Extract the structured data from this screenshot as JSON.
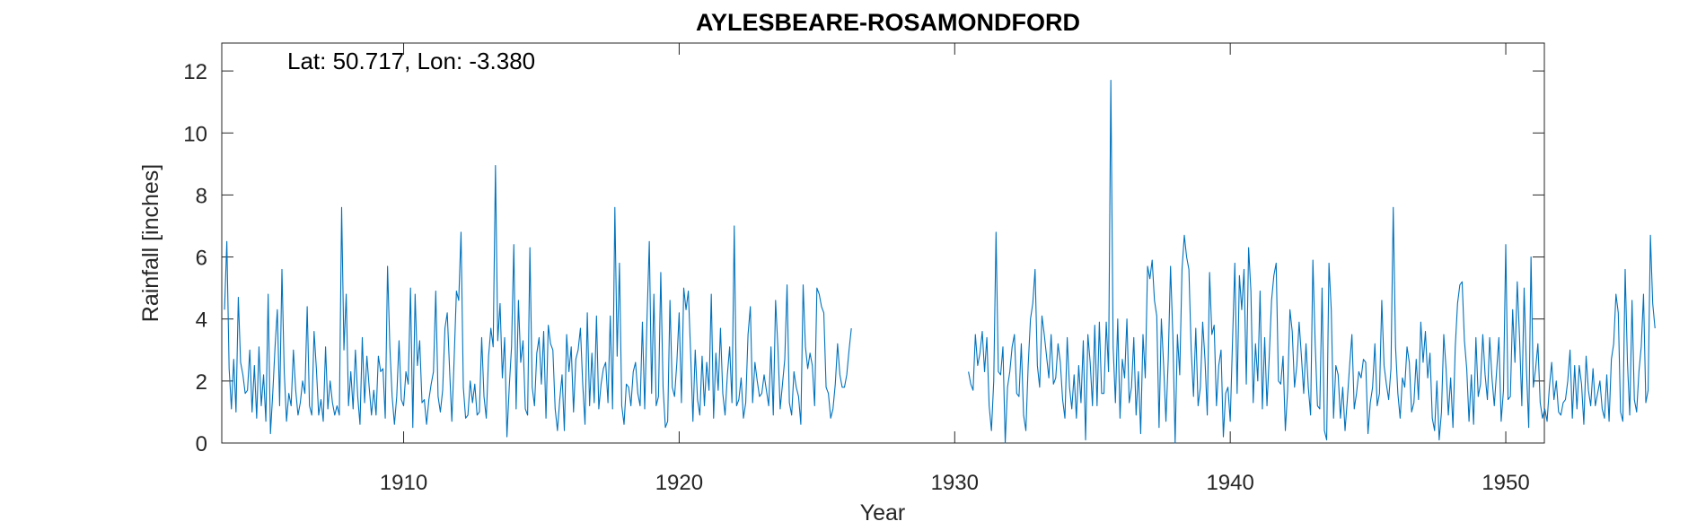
{
  "chart_data": {
    "type": "line",
    "title": "AYLESBEARE-ROSAMONDFORD",
    "xlabel": "Year",
    "ylabel": "Rainfall [inches]",
    "annotation": "Lat: 50.717, Lon: -3.380",
    "xlim": [
      1903.4,
      1951.4
    ],
    "ylim": [
      0,
      12.9
    ],
    "xticks": [
      1910,
      1920,
      1930,
      1940,
      1950
    ],
    "yticks": [
      0,
      2,
      4,
      6,
      8,
      10,
      12
    ],
    "grid": false,
    "line_color": "#0072BD",
    "series": [
      {
        "segments": [
          {
            "start": 1903.5,
            "step": 0.08333,
            "values": [
              4.3,
              6.5,
              2.4,
              1.1,
              2.7,
              1.0,
              4.7,
              2.6,
              2.2,
              1.6,
              1.7,
              3.0,
              1.0,
              2.5,
              0.8,
              3.1,
              1.2,
              2.2,
              0.7,
              4.8,
              0.3,
              1.6,
              3.1,
              4.3,
              1.2,
              5.6,
              2.3,
              0.7,
              1.6,
              1.2,
              3.0,
              1.7,
              0.9,
              1.3,
              2.0,
              1.6,
              4.4,
              1.2,
              0.9,
              3.6,
              2.4,
              0.9,
              1.4,
              0.7,
              3.1,
              1.1,
              2.0,
              1.3,
              0.9,
              1.2,
              0.9,
              7.6,
              3.0,
              4.8,
              1.2,
              2.3,
              1.1,
              3.0,
              1.5,
              0.6,
              3.4,
              1.3,
              2.8,
              1.8,
              0.9,
              1.7,
              0.9,
              2.8,
              2.3,
              2.4,
              0.8,
              5.7,
              3.1,
              1.5,
              0.6,
              1.5,
              3.3,
              1.4,
              1.2,
              2.3,
              1.9,
              5.0,
              0.5,
              4.8,
              2.5,
              3.3,
              1.3,
              1.4,
              0.6,
              1.4,
              1.9,
              2.3,
              4.9,
              1.5,
              1.0,
              1.7,
              3.7,
              4.2,
              2.4,
              0.7,
              2.7,
              4.9,
              4.6,
              6.8,
              1.8,
              0.8,
              0.9,
              2.0,
              1.3,
              1.9,
              0.9,
              1.0,
              3.4,
              1.5,
              0.8,
              2.8,
              3.7,
              3.1,
              8.95,
              3.3,
              4.5,
              2.1,
              3.4,
              0.2,
              1.8,
              3.1,
              6.4,
              1.1,
              4.6,
              2.6,
              3.3,
              1.1,
              0.9,
              6.3,
              1.8,
              1.2,
              2.9,
              3.4,
              1.9,
              3.6,
              0.8,
              3.8,
              3.2,
              3.0,
              1.1,
              0.4,
              1.4,
              2.2,
              0.4,
              3.5,
              2.3,
              3.1,
              1.0,
              2.7,
              3.0,
              3.7,
              1.9,
              0.6,
              4.2,
              1.2,
              2.9,
              1.3,
              4.1,
              1.1,
              1.9,
              2.4,
              2.6,
              1.3,
              4.1,
              1.1,
              7.6,
              2.8,
              5.8,
              1.2,
              0.6,
              1.9,
              1.8,
              1.2,
              2.3,
              2.6,
              1.6,
              1.2,
              3.9,
              1.1,
              4.0,
              6.5,
              1.6,
              4.8,
              1.2,
              1.5,
              5.5,
              1.8,
              0.5,
              0.7,
              4.6,
              1.8,
              1.5,
              2.6,
              4.2,
              1.3,
              5.0,
              4.3,
              4.9,
              2.9,
              0.7,
              3.0,
              1.4,
              0.9,
              2.8,
              1.2,
              2.6,
              1.7,
              4.8,
              0.8,
              2.9,
              1.7,
              3.7,
              1.6,
              0.9,
              2.2,
              3.1,
              1.3,
              7.0,
              1.2,
              1.4,
              2.1,
              0.8,
              1.3,
              3.5,
              4.4,
              1.3,
              2.6,
              2.0,
              1.5,
              1.6,
              2.2,
              1.7,
              1.2,
              3.1,
              0.9,
              4.6,
              3.1,
              1.1,
              1.9,
              2.7,
              5.1,
              1.3,
              0.9,
              2.3,
              1.8,
              1.5,
              0.6,
              5.1,
              3.1,
              2.4,
              2.9,
              2.5,
              1.2,
              5.0,
              4.8,
              4.4,
              4.2,
              1.8,
              1.6,
              0.8,
              1.1,
              1.9,
              3.2,
              2.2,
              1.8,
              1.8,
              2.2,
              3.0,
              3.7
            ]
          },
          {
            "start": 1930.5,
            "step": 0.08333,
            "values": [
              2.3,
              1.9,
              1.7,
              3.5,
              2.5,
              2.9,
              3.6,
              2.3,
              3.4,
              1.2,
              0.4,
              2.0,
              6.8,
              2.3,
              2.2,
              3.1,
              0.0,
              1.8,
              2.3,
              3.1,
              3.5,
              1.6,
              1.5,
              3.2,
              0.9,
              0.4,
              2.5,
              4.0,
              4.5,
              5.6,
              2.5,
              1.8,
              4.1,
              3.5,
              2.8,
              2.1,
              3.5,
              1.9,
              2.1,
              3.2,
              2.6,
              1.4,
              0.8,
              3.4,
              1.8,
              1.1,
              2.2,
              0.8,
              2.5,
              1.3,
              3.3,
              0.1,
              3.5,
              2.6,
              1.2,
              3.8,
              1.2,
              3.9,
              1.6,
              1.6,
              3.9,
              2.3,
              11.7,
              3.1,
              1.3,
              4.0,
              0.8,
              2.7,
              2.1,
              4.0,
              1.3,
              1.8,
              3.4,
              0.9,
              2.3,
              0.3,
              3.5,
              2.1,
              5.7,
              5.3,
              5.9,
              4.6,
              4.1,
              0.5,
              4.0,
              2.5,
              0.7,
              2.7,
              5.7,
              3.5,
              0.0,
              3.5,
              2.2,
              5.6,
              6.7,
              6.0,
              5.6,
              3.0,
              1.5,
              3.7,
              1.2,
              1.8,
              3.9,
              2.7,
              0.9,
              5.5,
              3.5,
              3.8,
              1.2,
              2.5,
              3.0,
              0.2,
              1.6,
              1.8,
              0.7,
              3.3,
              5.8,
              1.6,
              5.4,
              4.3,
              5.6,
              1.9,
              6.3,
              4.9,
              1.3,
              3.2,
              2.0,
              4.9,
              1.1,
              3.4,
              1.2,
              2.8,
              4.6,
              5.4,
              5.8,
              2.0,
              1.9,
              2.8,
              0.4,
              1.7,
              4.3,
              3.6,
              1.8,
              2.5,
              3.9,
              2.8,
              1.6,
              3.2,
              1.8,
              0.9,
              5.9,
              3.2,
              1.2,
              1.1,
              5.0,
              0.4,
              0.1,
              5.8,
              4.3,
              0.8,
              2.5,
              2.2,
              0.8,
              1.8,
              0.4,
              1.4,
              2.5,
              3.5,
              1.1,
              1.6,
              2.3,
              2.1,
              2.7,
              2.6,
              0.3,
              1.3,
              1.8,
              3.2,
              1.2,
              1.6,
              4.6,
              2.5,
              1.9,
              1.4,
              2.4,
              7.6,
              3.1,
              1.6,
              0.8,
              2.1,
              1.8,
              3.1,
              2.6,
              1.0,
              1.3,
              2.7,
              1.4,
              3.9,
              2.6,
              3.6,
              2.1,
              2.9,
              0.8,
              0.4,
              2.0,
              0.1,
              1.0,
              3.5,
              2.4,
              0.9,
              2.1,
              0.5,
              3.1,
              4.5,
              5.1,
              5.2,
              3.3,
              2.4,
              0.7,
              2.2,
              0.6,
              3.4,
              1.5,
              1.9,
              3.5,
              2.2,
              1.4,
              3.4,
              2.1,
              1.2,
              2.3,
              3.4,
              0.7,
              1.7,
              6.4,
              1.4,
              1.5,
              4.3,
              2.6,
              5.2,
              3.4,
              1.2,
              5.0,
              2.4,
              0.5,
              6.0,
              1.8,
              2.4,
              3.2,
              1.3,
              0.8,
              1.1,
              0.7,
              1.8,
              2.6,
              1.4,
              2.0,
              1.0,
              0.9,
              1.3,
              1.4,
              2.0,
              3.0,
              0.8,
              2.5,
              1.1,
              2.5,
              1.9,
              0.6,
              2.8,
              1.7,
              1.2,
              2.4,
              1.2,
              1.6,
              2.0,
              1.1,
              0.8,
              2.2,
              0.7,
              2.7,
              3.2,
              4.8,
              4.2,
              1.0,
              0.7,
              5.6,
              2.6,
              0.9,
              4.6,
              1.4,
              1.0,
              2.3,
              3.1,
              4.8,
              1.3,
              1.7,
              6.7,
              4.5,
              3.7
            ]
          }
        ]
      }
    ]
  }
}
